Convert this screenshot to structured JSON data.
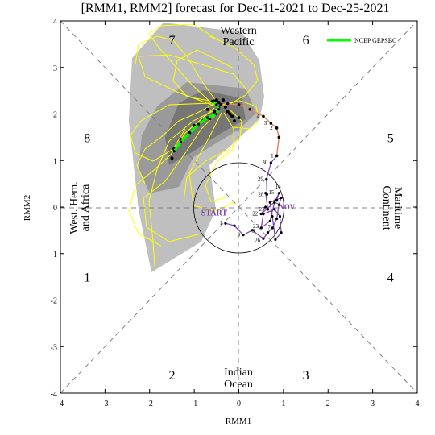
{
  "chart_data": {
    "type": "line",
    "title": "[RMM1, RMM2] forecast for Dec-11-2021 to Dec-25-2021",
    "xlabel": "RMM1",
    "ylabel": "RMM2",
    "xlim": [
      -4,
      4
    ],
    "ylim": [
      -4,
      4
    ],
    "x_ticks": [
      "-4",
      "-3",
      "-2",
      "-1",
      "0",
      "1",
      "2",
      "3",
      "4"
    ],
    "y_ticks": [
      "-4",
      "-3",
      "-2",
      "-1",
      "0",
      "1",
      "2",
      "3",
      "4"
    ],
    "phase_labels": [
      {
        "text": "1",
        "x": -3.4,
        "y": -1.5
      },
      {
        "text": "2",
        "x": -1.5,
        "y": -3.6
      },
      {
        "text": "3",
        "x": 1.5,
        "y": -3.6
      },
      {
        "text": "4",
        "x": 3.4,
        "y": -1.5
      },
      {
        "text": "5",
        "x": 3.4,
        "y": 1.5
      },
      {
        "text": "6",
        "x": 1.5,
        "y": 3.6
      },
      {
        "text": "7",
        "x": -1.5,
        "y": 3.6
      },
      {
        "text": "8",
        "x": -3.4,
        "y": 1.5
      }
    ],
    "region_labels": {
      "western_pacific": [
        "Western",
        "Pacific"
      ],
      "indian_ocean": [
        "Indian",
        "Ocean"
      ],
      "maritime_continent": [
        "Maritime",
        "Continent"
      ],
      "west_hem": [
        "West. Hem.",
        "and Africa"
      ]
    },
    "legend": {
      "label": "NCEP GEPSBC",
      "color": "#00ff00",
      "placement": "top-right"
    },
    "observed": {
      "start_label": "START",
      "end_label": "NOV",
      "color": "#7a3fae",
      "points": [
        {
          "label": "1",
          "x": -0.3,
          "y": -0.35
        },
        {
          "label": "",
          "x": -0.1,
          "y": -0.4
        },
        {
          "label": "3",
          "x": 0.1,
          "y": -0.6
        },
        {
          "label": "",
          "x": 0.3,
          "y": -0.5
        },
        {
          "label": "",
          "x": 0.55,
          "y": -0.68
        },
        {
          "label": "",
          "x": 0.65,
          "y": -0.55
        },
        {
          "label": "",
          "x": 0.75,
          "y": -0.45
        },
        {
          "label": "",
          "x": 0.85,
          "y": -0.25
        },
        {
          "label": "",
          "x": 0.9,
          "y": 0.05
        },
        {
          "label": "",
          "x": 0.95,
          "y": 0.2
        },
        {
          "label": "",
          "x": 0.7,
          "y": 0.1
        },
        {
          "label": "",
          "x": 0.75,
          "y": -0.2
        },
        {
          "label": "",
          "x": 0.82,
          "y": -0.7
        },
        {
          "label": "",
          "x": 0.95,
          "y": -0.55
        },
        {
          "label": "",
          "x": 0.92,
          "y": -0.2
        },
        {
          "label": "",
          "x": 0.8,
          "y": -0.05
        },
        {
          "label": "",
          "x": 0.55,
          "y": -0.15
        },
        {
          "label": "",
          "x": 0.5,
          "y": -0.45
        },
        {
          "label": "",
          "x": 0.7,
          "y": -0.3
        },
        {
          "label": "",
          "x": 0.8,
          "y": 0.1
        },
        {
          "label": "",
          "x": 0.9,
          "y": 0.3
        },
        {
          "label": "",
          "x": 0.85,
          "y": 0.15
        },
        {
          "label": "22",
          "x": 0.5,
          "y": -0.15
        },
        {
          "label": "",
          "x": 0.6,
          "y": 0.0
        },
        {
          "label": "27",
          "x": 0.65,
          "y": -0.05
        },
        {
          "label": "",
          "x": 0.6,
          "y": 0.3
        },
        {
          "label": "28",
          "x": 0.63,
          "y": 0.27
        },
        {
          "label": "29",
          "x": 0.62,
          "y": 0.6
        },
        {
          "label": "30",
          "x": 0.72,
          "y": 0.95
        },
        {
          "label": "1",
          "x": 0.85,
          "y": 1.1
        }
      ],
      "labels_extra": [
        {
          "text": "7",
          "x": 0.68,
          "y": -0.48
        },
        {
          "text": "23",
          "x": 0.38,
          "y": -0.45
        },
        {
          "text": "9",
          "x": 0.33,
          "y": -0.55
        },
        {
          "text": "14",
          "x": 0.88,
          "y": 0.4
        },
        {
          "text": "15",
          "x": 0.73,
          "y": 0.28
        },
        {
          "text": "12",
          "x": 0.82,
          "y": 0.08
        },
        {
          "text": "26",
          "x": 0.42,
          "y": -0.75
        }
      ]
    },
    "forecast_mean": {
      "color": "#e08a6a",
      "points": [
        {
          "label": "",
          "x": 0.85,
          "y": 1.1
        },
        {
          "label": "",
          "x": 0.9,
          "y": 1.5
        },
        {
          "label": "2",
          "x": 0.85,
          "y": 1.7
        },
        {
          "label": "3",
          "x": 0.72,
          "y": 1.8
        },
        {
          "label": "4",
          "x": 0.55,
          "y": 1.95
        },
        {
          "label": "",
          "x": 0.25,
          "y": 2.1
        },
        {
          "label": "",
          "x": 0.0,
          "y": 2.2
        },
        {
          "label": "",
          "x": -0.25,
          "y": 2.22
        },
        {
          "label": "",
          "x": -0.45,
          "y": 2.15
        }
      ]
    },
    "forecast_ensemble_dots": [
      {
        "x": -0.55,
        "y": 2.28
      },
      {
        "x": -0.5,
        "y": 2.3
      },
      {
        "x": -0.45,
        "y": 2.25
      },
      {
        "x": -0.4,
        "y": 2.2
      },
      {
        "x": -0.35,
        "y": 2.3
      },
      {
        "x": -0.3,
        "y": 2.15
      },
      {
        "x": -0.25,
        "y": 2.05
      },
      {
        "x": -0.2,
        "y": 2.0
      },
      {
        "x": -0.15,
        "y": 1.95
      },
      {
        "x": -0.55,
        "y": 2.05
      },
      {
        "x": -0.65,
        "y": 1.9
      },
      {
        "x": -0.8,
        "y": 1.85
      },
      {
        "x": -1.0,
        "y": 1.75
      },
      {
        "x": -1.1,
        "y": 1.6
      },
      {
        "x": -1.3,
        "y": 1.45
      },
      {
        "x": -1.45,
        "y": 1.25
      },
      {
        "x": -1.5,
        "y": 1.05
      },
      {
        "x": -0.1,
        "y": 1.85
      },
      {
        "x": 0.0,
        "y": 1.92
      },
      {
        "x": -0.7,
        "y": 2.1
      }
    ],
    "green_path": [
      {
        "x": -0.6,
        "y": 2.27
      },
      {
        "x": -0.5,
        "y": 2.2
      },
      {
        "x": -0.45,
        "y": 2.1
      },
      {
        "x": -0.5,
        "y": 2.0
      },
      {
        "x": -0.7,
        "y": 1.92
      },
      {
        "x": -0.9,
        "y": 1.78
      },
      {
        "x": -1.1,
        "y": 1.6
      },
      {
        "x": -1.3,
        "y": 1.4
      },
      {
        "x": -1.45,
        "y": 1.2
      }
    ],
    "grid": false
  }
}
